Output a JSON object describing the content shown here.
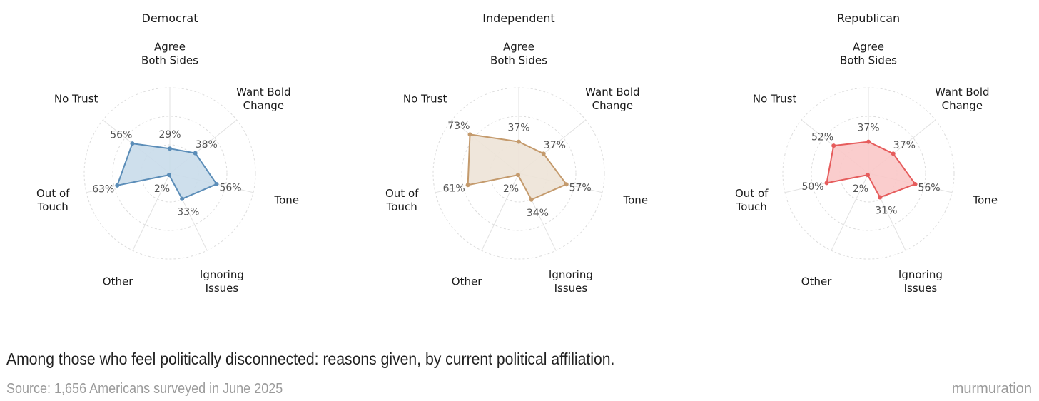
{
  "chart_data": [
    {
      "type": "radar",
      "title": "Democrat",
      "axes": [
        "Agree Both Sides",
        "Want Bold Change",
        "Tone",
        "Ignoring Issues",
        "Other",
        "Out of Touch",
        "No Trust"
      ],
      "values": [
        29,
        38,
        56,
        33,
        2,
        63,
        56
      ],
      "value_labels": [
        "29%",
        "38%",
        "56%",
        "33%",
        "2%",
        "63%",
        "56%"
      ],
      "color": "#5b8db8",
      "fill": "#c9dbea"
    },
    {
      "type": "radar",
      "title": "Independent",
      "axes": [
        "Agree Both Sides",
        "Want Bold Change",
        "Tone",
        "Ignoring Issues",
        "Other",
        "Out of Touch",
        "No Trust"
      ],
      "values": [
        37,
        37,
        57,
        34,
        2,
        61,
        73
      ],
      "value_labels": [
        "37%",
        "37%",
        "57%",
        "34%",
        "2%",
        "61%",
        "73%"
      ],
      "color": "#c49a6c",
      "fill": "#ede3d7"
    },
    {
      "type": "radar",
      "title": "Republican",
      "axes": [
        "Agree Both Sides",
        "Want Bold Change",
        "Tone",
        "Ignoring Issues",
        "Other",
        "Out of Touch",
        "No Trust"
      ],
      "values": [
        37,
        37,
        56,
        31,
        2,
        50,
        52
      ],
      "value_labels": [
        "37%",
        "37%",
        "56%",
        "31%",
        "2%",
        "50%",
        "52%"
      ],
      "color": "#e65c5c",
      "fill": "#f9c8c8"
    }
  ],
  "axis_label_lines": [
    [
      "Agree",
      "Both Sides"
    ],
    [
      "Want Bold",
      "Change"
    ],
    [
      "Tone"
    ],
    [
      "Ignoring",
      "Issues"
    ],
    [
      "Other"
    ],
    [
      "Out of",
      "Touch"
    ],
    [
      "No Trust"
    ]
  ],
  "footer": {
    "caption": "Among those who feel politically disconnected: reasons given, by current political affiliation.",
    "source": "Source: 1,656 Americans surveyed in June 2025",
    "brand": "murmuration"
  }
}
